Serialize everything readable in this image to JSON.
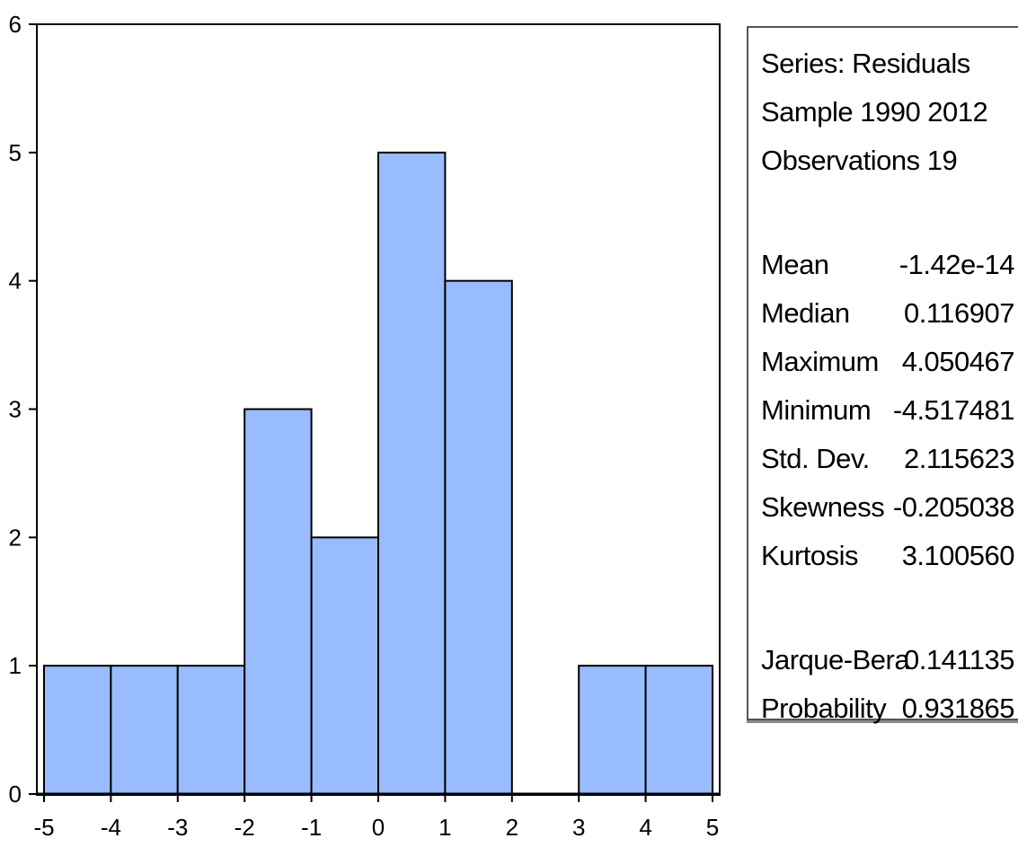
{
  "chart_data": {
    "type": "bar",
    "bins": [
      {
        "from": -5,
        "to": -4,
        "count": 1
      },
      {
        "from": -4,
        "to": -3,
        "count": 1
      },
      {
        "from": -3,
        "to": -2,
        "count": 1
      },
      {
        "from": -2,
        "to": -1,
        "count": 3
      },
      {
        "from": -1,
        "to": 0,
        "count": 2
      },
      {
        "from": 0,
        "to": 1,
        "count": 5
      },
      {
        "from": 1,
        "to": 2,
        "count": 4
      },
      {
        "from": 2,
        "to": 3,
        "count": 0
      },
      {
        "from": 3,
        "to": 4,
        "count": 1
      },
      {
        "from": 4,
        "to": 5,
        "count": 1
      }
    ],
    "xlim": [
      -5,
      5
    ],
    "ylim": [
      0,
      6
    ],
    "xticks": [
      "-5",
      "-4",
      "-3",
      "-2",
      "-1",
      "0",
      "1",
      "2",
      "3",
      "4",
      "5"
    ],
    "yticks": [
      "0",
      "1",
      "2",
      "3",
      "4",
      "5",
      "6"
    ],
    "grid": false,
    "bar_color": "#99bbff",
    "edge_color": "#000000"
  },
  "stats": {
    "series": "Series: Residuals",
    "sample": "Sample 1990 2012",
    "observations": "Observations 19",
    "rows": [
      {
        "label": "Mean",
        "value": "-1.42e-14"
      },
      {
        "label": "Median",
        "value": "0.116907"
      },
      {
        "label": "Maximum",
        "value": "4.050467"
      },
      {
        "label": "Minimum",
        "value": "-4.517481"
      },
      {
        "label": "Std. Dev.",
        "value": "2.115623"
      },
      {
        "label": "Skewness",
        "value": "-0.205038"
      },
      {
        "label": "Kurtosis",
        "value": "3.100560"
      }
    ],
    "tests": [
      {
        "label": "Jarque-Bera",
        "value": "0.141135"
      },
      {
        "label": "Probability",
        "value": "0.931865"
      }
    ]
  }
}
